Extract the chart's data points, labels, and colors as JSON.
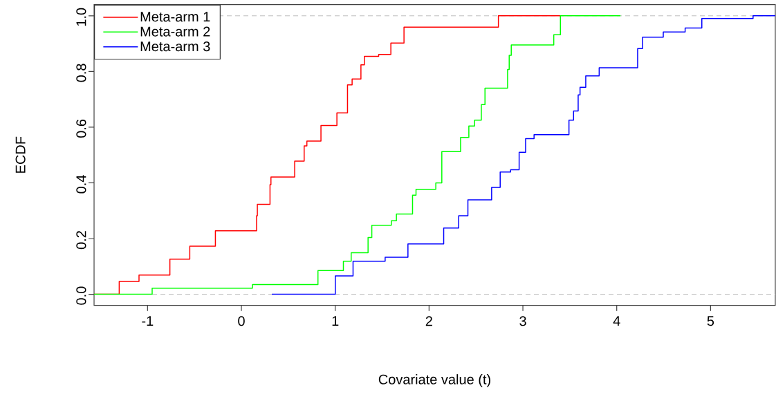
{
  "chart_data": {
    "type": "step",
    "xlabel": "Covariate value (t)",
    "ylabel": "ECDF",
    "xlim": [
      -1.57,
      5.69
    ],
    "ylim": [
      -0.04,
      1.04
    ],
    "xticks": [
      -1,
      0,
      1,
      2,
      3,
      4,
      5
    ],
    "yticks": [
      {
        "value": 0,
        "label": "0.0"
      },
      {
        "value": 0.2,
        "label": "0.2"
      },
      {
        "value": 0.4,
        "label": "0.4"
      },
      {
        "value": 0.6,
        "label": "0.6"
      },
      {
        "value": 0.8,
        "label": "0.8"
      },
      {
        "value": 1,
        "label": "1.0"
      }
    ],
    "legend": "top left",
    "marker": "none",
    "line_style": "solid",
    "ref_lines": [
      {
        "axis": "y",
        "value": 0,
        "color": "#bebebe",
        "line_style": "dashed"
      },
      {
        "axis": "y",
        "value": 1,
        "color": "#bebebe",
        "line_style": "dashed"
      }
    ],
    "series": [
      {
        "name": "Meta-arm 1",
        "color": "#ff0000",
        "x": [
          -1.57,
          -1.302,
          -1.091,
          -0.762,
          -0.55,
          -0.277,
          0.162,
          0.17,
          0.305,
          0.315,
          0.568,
          0.669,
          0.698,
          0.848,
          1.018,
          1.131,
          1.18,
          1.274,
          1.311,
          1.463,
          1.593,
          1.733,
          2.739,
          3.4
        ],
        "values": [
          0,
          0.046,
          0.069,
          0.126,
          0.173,
          0.228,
          0.282,
          0.323,
          0.394,
          0.421,
          0.478,
          0.533,
          0.55,
          0.606,
          0.651,
          0.752,
          0.773,
          0.824,
          0.854,
          0.861,
          0.902,
          0.959,
          1.0,
          1.0
        ]
      },
      {
        "name": "Meta-arm 2",
        "color": "#00ff00",
        "x": [
          -1.57,
          -0.951,
          0.118,
          0.816,
          1.087,
          1.17,
          1.35,
          1.39,
          1.598,
          1.652,
          1.824,
          1.861,
          2.072,
          2.136,
          2.336,
          2.424,
          2.485,
          2.557,
          2.596,
          2.837,
          2.854,
          2.876,
          3.329,
          3.4,
          4.04
        ],
        "values": [
          0,
          0.022,
          0.035,
          0.085,
          0.119,
          0.149,
          0.204,
          0.248,
          0.264,
          0.288,
          0.356,
          0.377,
          0.4,
          0.512,
          0.563,
          0.604,
          0.625,
          0.681,
          0.74,
          0.807,
          0.858,
          0.895,
          0.932,
          1.0,
          1.0
        ]
      },
      {
        "name": "Meta-arm 3",
        "color": "#0000ff",
        "x": [
          0.324,
          1.001,
          1.19,
          1.532,
          1.775,
          2.156,
          2.316,
          2.414,
          2.667,
          2.758,
          2.869,
          2.96,
          3.029,
          3.119,
          3.491,
          3.54,
          3.589,
          3.609,
          3.67,
          3.813,
          4.223,
          4.275,
          4.496,
          4.729,
          4.907,
          5.453,
          5.69
        ],
        "values": [
          0,
          0.066,
          0.119,
          0.133,
          0.181,
          0.238,
          0.282,
          0.339,
          0.384,
          0.439,
          0.447,
          0.51,
          0.559,
          0.573,
          0.625,
          0.658,
          0.716,
          0.743,
          0.784,
          0.813,
          0.882,
          0.923,
          0.942,
          0.956,
          0.99,
          1.0,
          1.0
        ]
      }
    ]
  }
}
